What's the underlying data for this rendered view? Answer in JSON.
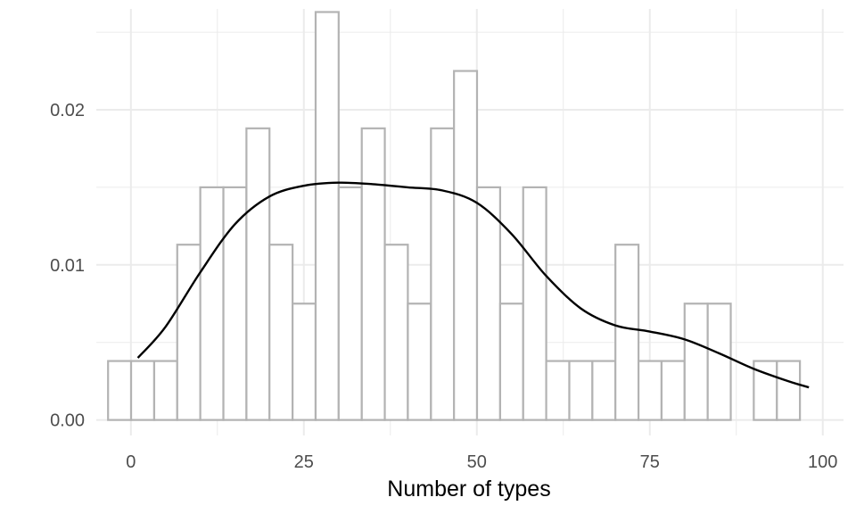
{
  "chart_data": {
    "type": "histogram",
    "xlabel": "Number of types",
    "ylabel": "",
    "xlim": [
      -5,
      103
    ],
    "ylim": [
      -0.001,
      0.0265
    ],
    "x_ticks": [
      0,
      25,
      50,
      75,
      100
    ],
    "x_tick_labels": [
      "0",
      "25",
      "50",
      "75",
      "100"
    ],
    "y_ticks": [
      0.0,
      0.01,
      0.02
    ],
    "y_tick_labels": [
      "0.00",
      "0.01",
      "0.02"
    ],
    "grid": true,
    "bins": [
      {
        "x0": -3.3,
        "x1": 0.03,
        "density": 0.0038
      },
      {
        "x0": 0.03,
        "x1": 3.37,
        "density": 0.0038
      },
      {
        "x0": 3.37,
        "x1": 6.7,
        "density": 0.0038
      },
      {
        "x0": 6.7,
        "x1": 10.03,
        "density": 0.0113
      },
      {
        "x0": 10.03,
        "x1": 13.37,
        "density": 0.015
      },
      {
        "x0": 13.37,
        "x1": 16.7,
        "density": 0.015
      },
      {
        "x0": 16.7,
        "x1": 20.03,
        "density": 0.0188
      },
      {
        "x0": 20.03,
        "x1": 23.37,
        "density": 0.0113
      },
      {
        "x0": 23.37,
        "x1": 26.7,
        "density": 0.0075
      },
      {
        "x0": 26.7,
        "x1": 30.03,
        "density": 0.0263
      },
      {
        "x0": 30.03,
        "x1": 33.37,
        "density": 0.015
      },
      {
        "x0": 33.37,
        "x1": 36.7,
        "density": 0.0188
      },
      {
        "x0": 36.7,
        "x1": 40.03,
        "density": 0.0113
      },
      {
        "x0": 40.03,
        "x1": 43.37,
        "density": 0.0075
      },
      {
        "x0": 43.37,
        "x1": 46.7,
        "density": 0.0188
      },
      {
        "x0": 46.7,
        "x1": 50.03,
        "density": 0.0225
      },
      {
        "x0": 50.03,
        "x1": 53.37,
        "density": 0.015
      },
      {
        "x0": 53.37,
        "x1": 56.7,
        "density": 0.0075
      },
      {
        "x0": 56.7,
        "x1": 60.03,
        "density": 0.015
      },
      {
        "x0": 60.03,
        "x1": 63.37,
        "density": 0.0038
      },
      {
        "x0": 63.37,
        "x1": 66.7,
        "density": 0.0038
      },
      {
        "x0": 66.7,
        "x1": 70.03,
        "density": 0.0038
      },
      {
        "x0": 70.03,
        "x1": 73.37,
        "density": 0.0113
      },
      {
        "x0": 73.37,
        "x1": 76.7,
        "density": 0.0038
      },
      {
        "x0": 76.7,
        "x1": 80.03,
        "density": 0.0038
      },
      {
        "x0": 80.03,
        "x1": 83.37,
        "density": 0.0075
      },
      {
        "x0": 83.37,
        "x1": 86.7,
        "density": 0.0075
      },
      {
        "x0": 86.7,
        "x1": 90.03,
        "density": 0.0
      },
      {
        "x0": 90.03,
        "x1": 93.37,
        "density": 0.0038
      },
      {
        "x0": 93.37,
        "x1": 96.7,
        "density": 0.0038
      }
    ],
    "density_curve": {
      "x": [
        1,
        5,
        10,
        15,
        20,
        25,
        30,
        35,
        40,
        45,
        50,
        55,
        60,
        65,
        70,
        75,
        80,
        85,
        90,
        95,
        98
      ],
      "y": [
        0.004,
        0.006,
        0.0095,
        0.0126,
        0.0144,
        0.0151,
        0.0153,
        0.0152,
        0.015,
        0.0148,
        0.014,
        0.012,
        0.0093,
        0.0072,
        0.0061,
        0.0057,
        0.0052,
        0.0043,
        0.0033,
        0.0025,
        0.0021
      ]
    },
    "colors": {
      "bar_outline": "#b3b3b3",
      "bar_fill": "#ffffff",
      "curve": "#000000",
      "grid": "#ebebeb",
      "tick_text": "#4d4d4d"
    }
  }
}
